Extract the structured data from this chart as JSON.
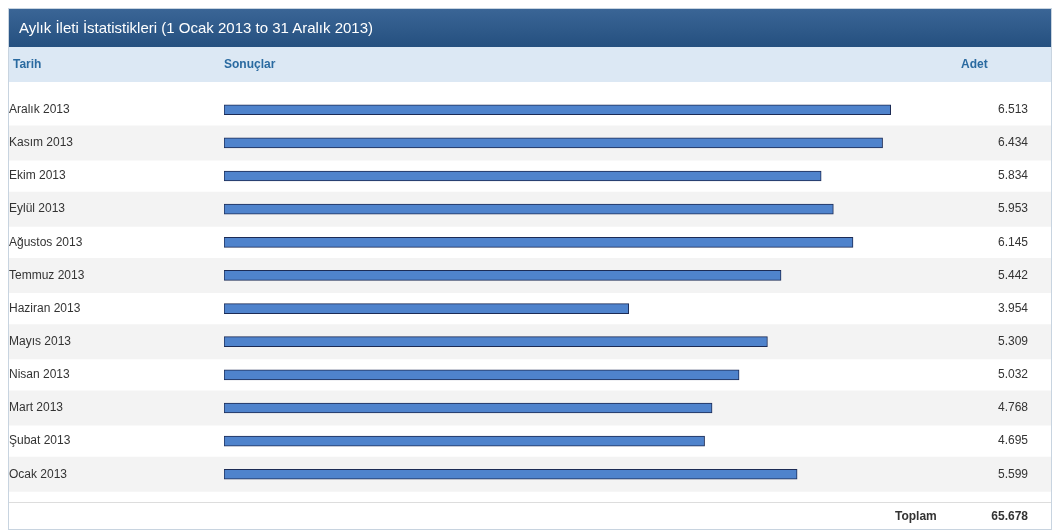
{
  "chart_data": {
    "type": "bar",
    "orientation": "horizontal",
    "title": "Aylık İleti İstatistikleri (1 Ocak 2013 to 31 Aralık 2013)",
    "ylabel": "Tarih",
    "xlabel": "Sonuçlar",
    "categories": [
      "Aralık 2013",
      "Kasım 2013",
      "Ekim 2013",
      "Eylül 2013",
      "Ağustos 2013",
      "Temmuz 2013",
      "Haziran 2013",
      "Mayıs 2013",
      "Nisan 2013",
      "Mart 2013",
      "Şubat 2013",
      "Ocak 2013"
    ],
    "values": [
      6513,
      6434,
      5834,
      5953,
      6145,
      5442,
      3954,
      5309,
      5032,
      4768,
      4695,
      5599
    ],
    "value_labels": [
      "6.513",
      "6.434",
      "5.834",
      "5.953",
      "6.145",
      "5.442",
      "3.954",
      "5.309",
      "5.032",
      "4.768",
      "4.695",
      "5.599"
    ],
    "color": "#4f83cc",
    "annotations": [
      "Adet",
      "Toplam",
      "65.678"
    ]
  }
}
